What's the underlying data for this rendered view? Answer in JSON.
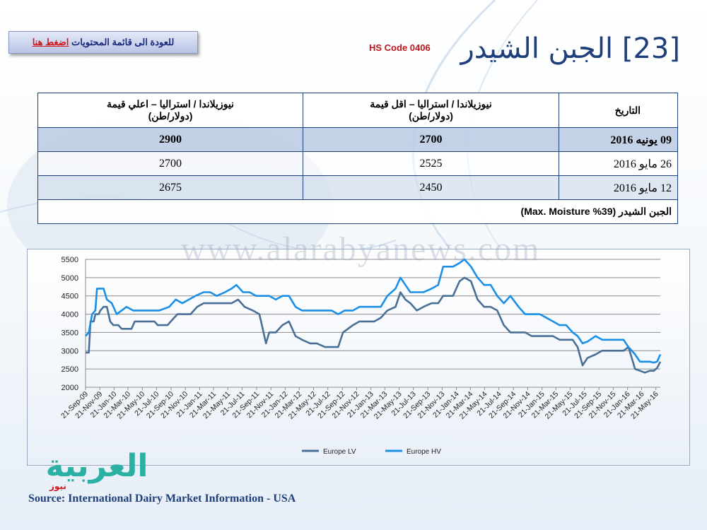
{
  "header": {
    "back_text": "للعودة الى قائمة المحتويات",
    "back_link": "اضغط هنا",
    "hs_code": "HS Code 0406",
    "title": "[23] الجبن الشيدر"
  },
  "table": {
    "headers": {
      "date": "التاريخ",
      "low": [
        "نيوزيلاندا / استراليا – اقل قيمة",
        "(دولار/طن)"
      ],
      "high": [
        "نيوزيلاندا / استراليا – اعلي قيمة",
        "(دولار/طن)"
      ]
    },
    "rows": [
      {
        "date": "09 يونيه 2016",
        "low": "2700",
        "high": "2900"
      },
      {
        "date": "26 مايو 2016",
        "low": "2525",
        "high": "2700"
      },
      {
        "date": "12 مايو 2016",
        "low": "2450",
        "high": "2675"
      }
    ],
    "note": "الجبن الشيدر (39% Max. Moisture)"
  },
  "watermark": "www.alarabyanews.com",
  "logo": {
    "main": "العربية",
    "sub": "نيوز"
  },
  "source": "Source: International Dairy Market Information - USA",
  "colors": {
    "lv": "#4a6f96",
    "hv": "#1b8fe6",
    "title": "#1f3f7a",
    "accent": "#c0141c"
  },
  "chart_data": {
    "type": "line",
    "ylim": [
      2000,
      5500
    ],
    "yticks": [
      2000,
      2500,
      3000,
      3500,
      4000,
      4500,
      5000,
      5500
    ],
    "xlim": [
      "2009-09-21",
      "2016-06-09"
    ],
    "xtick_labels": [
      "21-Sep-09",
      "21-Nov-09",
      "21-Jan-10",
      "21-Mar-10",
      "21-May-10",
      "21-Jul-10",
      "21-Sep-10",
      "21-Nov-10",
      "21-Jan-11",
      "21-Mar-11",
      "21-May-11",
      "21-Jul-11",
      "21-Sep-11",
      "21-Nov-11",
      "21-Jan-12",
      "21-Mar-12",
      "21-May-12",
      "21-Jul-12",
      "21-Sep-12",
      "21-Nov-12",
      "21-Jan-13",
      "21-Mar-13",
      "21-May-13",
      "21-Jul-13",
      "21-Sep-13",
      "21-Nov-13",
      "21-Jan-14",
      "21-Mar-14",
      "21-May-14",
      "21-Jul-14",
      "21-Sep-14",
      "21-Nov-14",
      "21-Jan-15",
      "21-Mar-15",
      "21-May-15",
      "21-Jul-15",
      "21-Sep-15",
      "21-Nov-15",
      "21-Jan-16",
      "21-Mar-16",
      "21-May-16"
    ],
    "legend_position": "bottom",
    "grid": true,
    "series": [
      {
        "name": "Europe LV",
        "color": "#4a6f96",
        "points": [
          [
            "2009-09-21",
            2950
          ],
          [
            "2009-10-05",
            2950
          ],
          [
            "2009-10-12",
            3800
          ],
          [
            "2009-10-26",
            3800
          ],
          [
            "2009-11-02",
            4000
          ],
          [
            "2009-11-16",
            4000
          ],
          [
            "2009-11-23",
            4100
          ],
          [
            "2009-12-07",
            4200
          ],
          [
            "2009-12-21",
            4200
          ],
          [
            "2010-01-04",
            3800
          ],
          [
            "2010-01-18",
            3700
          ],
          [
            "2010-02-08",
            3700
          ],
          [
            "2010-02-22",
            3600
          ],
          [
            "2010-04-05",
            3600
          ],
          [
            "2010-04-19",
            3800
          ],
          [
            "2010-05-17",
            3800
          ],
          [
            "2010-07-12",
            3800
          ],
          [
            "2010-07-26",
            3700
          ],
          [
            "2010-09-06",
            3700
          ],
          [
            "2010-09-20",
            3800
          ],
          [
            "2010-10-18",
            4000
          ],
          [
            "2010-12-13",
            4000
          ],
          [
            "2011-01-10",
            4200
          ],
          [
            "2011-02-07",
            4300
          ],
          [
            "2011-04-04",
            4300
          ],
          [
            "2011-05-02",
            4300
          ],
          [
            "2011-06-06",
            4300
          ],
          [
            "2011-07-04",
            4400
          ],
          [
            "2011-08-01",
            4200
          ],
          [
            "2011-09-05",
            4100
          ],
          [
            "2011-10-03",
            4000
          ],
          [
            "2011-10-17",
            3600
          ],
          [
            "2011-10-31",
            3200
          ],
          [
            "2011-11-14",
            3500
          ],
          [
            "2011-12-12",
            3500
          ],
          [
            "2012-01-09",
            3700
          ],
          [
            "2012-02-06",
            3800
          ],
          [
            "2012-03-05",
            3400
          ],
          [
            "2012-04-02",
            3300
          ],
          [
            "2012-05-07",
            3200
          ],
          [
            "2012-06-04",
            3200
          ],
          [
            "2012-07-09",
            3100
          ],
          [
            "2012-08-06",
            3100
          ],
          [
            "2012-09-03",
            3100
          ],
          [
            "2012-09-24",
            3500
          ],
          [
            "2012-11-05",
            3700
          ],
          [
            "2012-12-03",
            3800
          ],
          [
            "2013-01-07",
            3800
          ],
          [
            "2013-02-04",
            3800
          ],
          [
            "2013-03-04",
            3900
          ],
          [
            "2013-04-01",
            4100
          ],
          [
            "2013-05-06",
            4200
          ],
          [
            "2013-05-27",
            4600
          ],
          [
            "2013-06-17",
            4400
          ],
          [
            "2013-07-08",
            4300
          ],
          [
            "2013-08-05",
            4100
          ],
          [
            "2013-09-02",
            4200
          ],
          [
            "2013-10-07",
            4300
          ],
          [
            "2013-11-04",
            4300
          ],
          [
            "2013-11-25",
            4500
          ],
          [
            "2014-01-06",
            4500
          ],
          [
            "2014-02-03",
            4900
          ],
          [
            "2014-02-24",
            5000
          ],
          [
            "2014-03-24",
            4900
          ],
          [
            "2014-04-21",
            4400
          ],
          [
            "2014-05-19",
            4200
          ],
          [
            "2014-06-16",
            4200
          ],
          [
            "2014-07-14",
            4100
          ],
          [
            "2014-08-11",
            3700
          ],
          [
            "2014-09-08",
            3500
          ],
          [
            "2014-10-13",
            3500
          ],
          [
            "2014-11-10",
            3500
          ],
          [
            "2014-12-08",
            3400
          ],
          [
            "2015-01-12",
            3400
          ],
          [
            "2015-02-09",
            3400
          ],
          [
            "2015-03-09",
            3400
          ],
          [
            "2015-04-06",
            3300
          ],
          [
            "2015-05-04",
            3300
          ],
          [
            "2015-06-01",
            3300
          ],
          [
            "2015-06-22",
            3100
          ],
          [
            "2015-07-13",
            2600
          ],
          [
            "2015-08-03",
            2800
          ],
          [
            "2015-09-07",
            2900
          ],
          [
            "2015-10-05",
            3000
          ],
          [
            "2015-11-02",
            3000
          ],
          [
            "2015-12-07",
            3000
          ],
          [
            "2016-01-04",
            3000
          ],
          [
            "2016-01-25",
            3100
          ],
          [
            "2016-02-08",
            2800
          ],
          [
            "2016-02-22",
            2500
          ],
          [
            "2016-03-14",
            2450
          ],
          [
            "2016-04-04",
            2400
          ],
          [
            "2016-04-25",
            2450
          ],
          [
            "2016-05-12",
            2450
          ],
          [
            "2016-05-26",
            2525
          ],
          [
            "2016-06-09",
            2700
          ]
        ]
      },
      {
        "name": "Europe HV",
        "color": "#1b8fe6",
        "points": [
          [
            "2009-09-21",
            3400
          ],
          [
            "2009-10-05",
            3500
          ],
          [
            "2009-10-19",
            4000
          ],
          [
            "2009-11-02",
            4100
          ],
          [
            "2009-11-09",
            4700
          ],
          [
            "2009-12-07",
            4700
          ],
          [
            "2009-12-21",
            4400
          ],
          [
            "2010-01-11",
            4300
          ],
          [
            "2010-02-01",
            4000
          ],
          [
            "2010-02-22",
            4100
          ],
          [
            "2010-03-15",
            4200
          ],
          [
            "2010-04-12",
            4100
          ],
          [
            "2010-06-07",
            4100
          ],
          [
            "2010-08-02",
            4100
          ],
          [
            "2010-09-13",
            4200
          ],
          [
            "2010-10-11",
            4400
          ],
          [
            "2010-11-08",
            4300
          ],
          [
            "2010-12-06",
            4400
          ],
          [
            "2011-01-03",
            4500
          ],
          [
            "2011-02-07",
            4600
          ],
          [
            "2011-03-07",
            4600
          ],
          [
            "2011-04-04",
            4500
          ],
          [
            "2011-05-09",
            4600
          ],
          [
            "2011-06-06",
            4700
          ],
          [
            "2011-06-27",
            4800
          ],
          [
            "2011-07-25",
            4600
          ],
          [
            "2011-08-22",
            4600
          ],
          [
            "2011-09-19",
            4500
          ],
          [
            "2011-10-17",
            4500
          ],
          [
            "2011-11-14",
            4500
          ],
          [
            "2011-12-12",
            4400
          ],
          [
            "2012-01-09",
            4500
          ],
          [
            "2012-02-06",
            4500
          ],
          [
            "2012-03-05",
            4200
          ],
          [
            "2012-04-02",
            4100
          ],
          [
            "2012-05-07",
            4100
          ],
          [
            "2012-06-04",
            4100
          ],
          [
            "2012-07-09",
            4100
          ],
          [
            "2012-08-06",
            4100
          ],
          [
            "2012-09-03",
            4000
          ],
          [
            "2012-10-01",
            4100
          ],
          [
            "2012-11-05",
            4100
          ],
          [
            "2012-12-03",
            4200
          ],
          [
            "2013-01-07",
            4200
          ],
          [
            "2013-02-04",
            4200
          ],
          [
            "2013-03-04",
            4200
          ],
          [
            "2013-04-01",
            4500
          ],
          [
            "2013-05-06",
            4700
          ],
          [
            "2013-05-27",
            5000
          ],
          [
            "2013-06-17",
            4800
          ],
          [
            "2013-07-08",
            4600
          ],
          [
            "2013-08-05",
            4600
          ],
          [
            "2013-09-02",
            4600
          ],
          [
            "2013-10-07",
            4700
          ],
          [
            "2013-11-04",
            4800
          ],
          [
            "2013-11-25",
            5300
          ],
          [
            "2014-01-06",
            5300
          ],
          [
            "2014-02-03",
            5400
          ],
          [
            "2014-02-24",
            5500
          ],
          [
            "2014-03-24",
            5300
          ],
          [
            "2014-04-21",
            5000
          ],
          [
            "2014-05-19",
            4800
          ],
          [
            "2014-06-16",
            4800
          ],
          [
            "2014-07-14",
            4500
          ],
          [
            "2014-08-11",
            4300
          ],
          [
            "2014-09-08",
            4500
          ],
          [
            "2014-10-13",
            4200
          ],
          [
            "2014-11-10",
            4000
          ],
          [
            "2014-12-08",
            4000
          ],
          [
            "2015-01-12",
            4000
          ],
          [
            "2015-02-09",
            3900
          ],
          [
            "2015-03-09",
            3800
          ],
          [
            "2015-04-06",
            3700
          ],
          [
            "2015-05-04",
            3700
          ],
          [
            "2015-06-01",
            3500
          ],
          [
            "2015-06-22",
            3400
          ],
          [
            "2015-07-13",
            3200
          ],
          [
            "2015-08-03",
            3250
          ],
          [
            "2015-09-07",
            3400
          ],
          [
            "2015-10-05",
            3300
          ],
          [
            "2015-11-02",
            3300
          ],
          [
            "2015-12-07",
            3300
          ],
          [
            "2016-01-04",
            3300
          ],
          [
            "2016-01-25",
            3100
          ],
          [
            "2016-02-08",
            3000
          ],
          [
            "2016-02-22",
            2900
          ],
          [
            "2016-03-14",
            2700
          ],
          [
            "2016-04-04",
            2700
          ],
          [
            "2016-04-25",
            2700
          ],
          [
            "2016-05-12",
            2675
          ],
          [
            "2016-05-26",
            2700
          ],
          [
            "2016-06-09",
            2900
          ]
        ]
      }
    ]
  }
}
